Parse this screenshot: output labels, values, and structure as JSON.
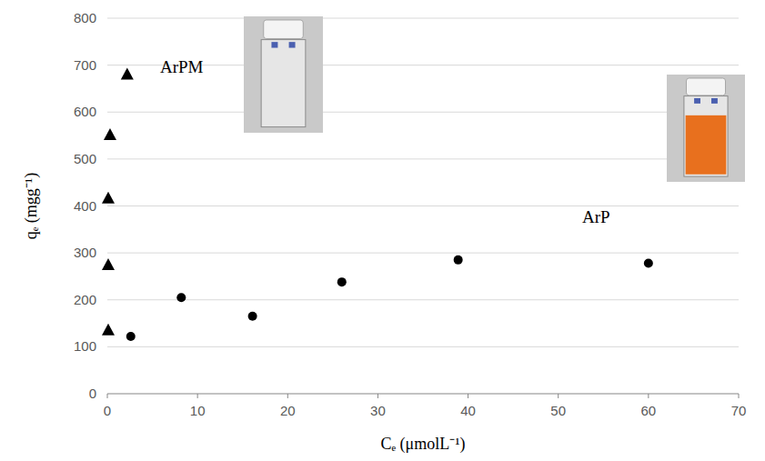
{
  "chart_data": {
    "type": "scatter",
    "x_label": "Cₑ (μmolL⁻¹)",
    "y_label": "qₑ (mgg⁻¹)",
    "xlim": [
      0,
      70
    ],
    "xticks": [
      0,
      10,
      20,
      30,
      40,
      50,
      60,
      70
    ],
    "ylim": [
      0,
      800
    ],
    "yticks": [
      0,
      100,
      200,
      300,
      400,
      500,
      600,
      700,
      800
    ],
    "grid": true,
    "series": [
      {
        "name": "ArPM",
        "color": "#000000",
        "marker": "triangle",
        "x": [
          0.1,
          0.1,
          0.1,
          0.3,
          2.2
        ],
        "values": [
          136,
          275,
          417,
          552,
          681
        ]
      },
      {
        "name": "ArP",
        "color": "#000000",
        "marker": "circle",
        "x": [
          2.6,
          8.2,
          16.1,
          26,
          38.9,
          60
        ],
        "values": [
          122,
          205,
          165,
          238,
          285,
          278
        ]
      }
    ]
  }
}
